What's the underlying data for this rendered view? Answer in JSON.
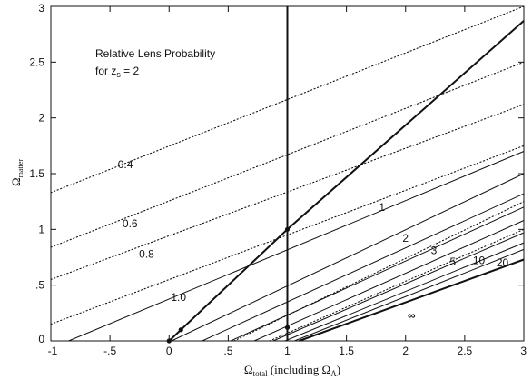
{
  "chart_data": {
    "type": "line",
    "title": "Relative Lens Probability",
    "subtitle": "for z",
    "subtitle_sub": "s",
    "subtitle_tail": " = 2",
    "xlabel": "Ω",
    "xlabel_sub": "total",
    "xlabel_tail": " (including Ω",
    "xlabel_tail_sub": "Λ",
    "xlabel_close": ")",
    "ylabel": "Ω",
    "ylabel_sub": "matter",
    "xlim": [
      -1,
      3
    ],
    "ylim": [
      0,
      3
    ],
    "x_ticks": [
      -1,
      -0.5,
      0,
      0.5,
      1,
      1.5,
      2,
      2.5,
      3
    ],
    "x_tick_labels": [
      "-1",
      "-.5",
      "0",
      ".5",
      "1",
      "1.5",
      "2",
      "2.5",
      "3"
    ],
    "y_ticks": [
      0,
      0.5,
      1,
      1.5,
      2,
      2.5,
      3
    ],
    "y_tick_labels": [
      "0",
      ".5",
      "1",
      "1.5",
      "2",
      "2.5",
      "3"
    ],
    "grid": false,
    "reference_lines": [
      {
        "style": "thick",
        "points": [
          [
            0,
            0
          ],
          [
            1,
            1
          ],
          [
            3,
            2.87
          ]
        ]
      },
      {
        "style": "thick",
        "points": [
          [
            1,
            0
          ],
          [
            1,
            3
          ]
        ]
      }
    ],
    "dotted_series": [
      {
        "label": "0.4",
        "points": [
          [
            -1,
            1.33
          ],
          [
            3,
            3.0
          ]
        ]
      },
      {
        "label": "0.6",
        "points": [
          [
            -1,
            0.84
          ],
          [
            3,
            2.5
          ]
        ]
      },
      {
        "label": "0.8",
        "points": [
          [
            -1,
            0.55
          ],
          [
            3,
            2.12
          ]
        ]
      },
      {
        "label": "",
        "points": [
          [
            -1,
            0.15
          ],
          [
            3,
            1.75
          ]
        ]
      },
      {
        "label": "",
        "points": [
          [
            0.55,
            0
          ],
          [
            3,
            1.25
          ]
        ]
      },
      {
        "label": "",
        "points": [
          [
            0.85,
            0
          ],
          [
            3,
            1.0
          ]
        ]
      }
    ],
    "solid_series": [
      {
        "label": "1.0",
        "points": [
          [
            -0.85,
            0
          ],
          [
            3,
            1.7
          ]
        ]
      },
      {
        "label": "1",
        "points": [
          [
            0.02,
            0
          ],
          [
            3,
            1.5
          ]
        ]
      },
      {
        "label": "",
        "points": [
          [
            0.28,
            0
          ],
          [
            3,
            1.32
          ]
        ]
      },
      {
        "label": "2",
        "points": [
          [
            0.52,
            0
          ],
          [
            3,
            1.2
          ]
        ]
      },
      {
        "label": "3",
        "points": [
          [
            0.72,
            0
          ],
          [
            3,
            1.08
          ]
        ]
      },
      {
        "label": "5",
        "points": [
          [
            0.88,
            0
          ],
          [
            3,
            0.97
          ]
        ]
      },
      {
        "label": "10",
        "points": [
          [
            0.98,
            0
          ],
          [
            3,
            0.88
          ]
        ]
      },
      {
        "label": "20",
        "points": [
          [
            1.06,
            0
          ],
          [
            3,
            0.82
          ]
        ]
      }
    ],
    "infinity_series": {
      "label": "∞",
      "points": [
        [
          1.1,
          0
        ],
        [
          3,
          0.73
        ]
      ]
    },
    "line_labels": [
      {
        "text": "0.4",
        "x": -0.37,
        "y": 1.58
      },
      {
        "text": "0.6",
        "x": -0.33,
        "y": 1.05
      },
      {
        "text": "0.8",
        "x": -0.19,
        "y": 0.78
      },
      {
        "text": "1.0",
        "x": 0.08,
        "y": 0.39
      },
      {
        "text": "1",
        "x": 1.8,
        "y": 1.2
      },
      {
        "text": "2",
        "x": 2.0,
        "y": 0.92
      },
      {
        "text": "3",
        "x": 2.24,
        "y": 0.81
      },
      {
        "text": "5",
        "x": 2.4,
        "y": 0.71
      },
      {
        "text": "10",
        "x": 2.62,
        "y": 0.72
      },
      {
        "text": "20",
        "x": 2.82,
        "y": 0.7
      },
      {
        "text": "∞",
        "x": 2.05,
        "y": 0.23
      }
    ],
    "markers": [
      {
        "x": 0,
        "y": 0
      },
      {
        "x": 0.1,
        "y": 0.1
      },
      {
        "x": 1,
        "y": 0.12
      },
      {
        "x": 1,
        "y": 1
      }
    ]
  }
}
